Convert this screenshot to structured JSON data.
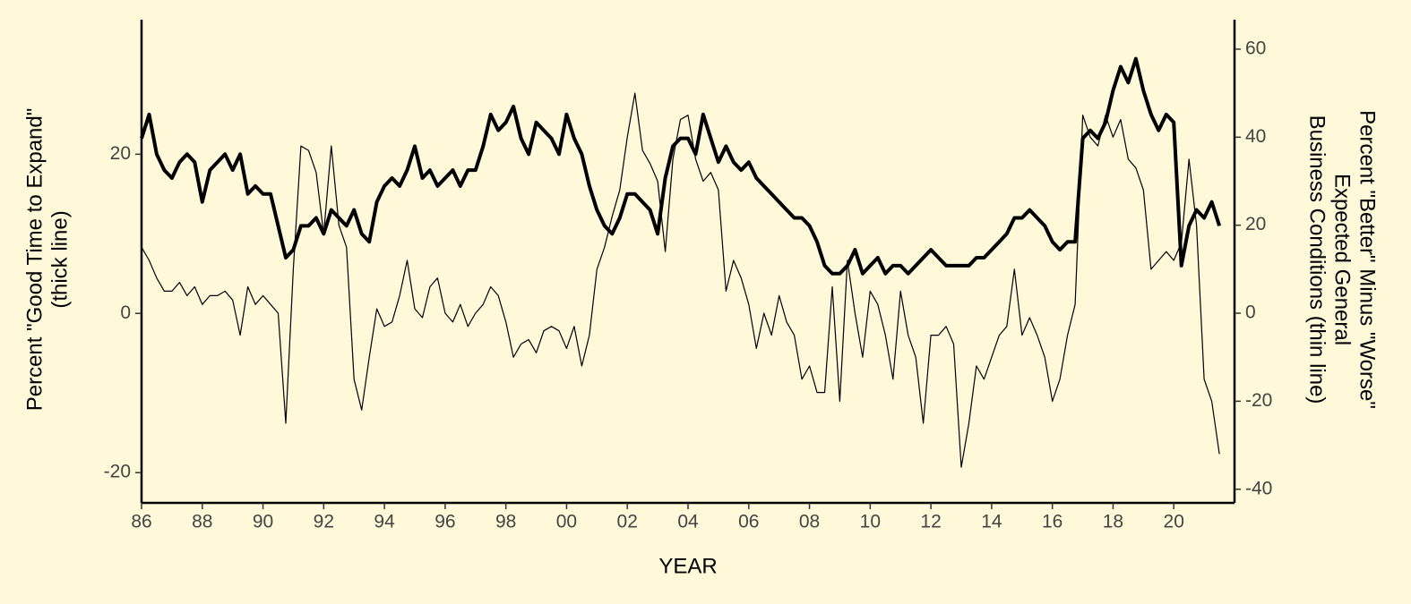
{
  "chart_data": {
    "type": "line",
    "xlabel": "YEAR",
    "ylabel": [
      "Percent \"Good Time to Expand\"",
      "(thick line)"
    ],
    "y2label": [
      "Percent \"Better\" Minus \"Worse\"",
      "Expected General",
      "Business Conditions (thin line)"
    ],
    "x": [
      1986,
      1986.25,
      1986.5,
      1986.75,
      1987,
      1987.25,
      1987.5,
      1987.75,
      1988,
      1988.25,
      1988.5,
      1988.75,
      1989,
      1989.25,
      1989.5,
      1989.75,
      1990,
      1990.25,
      1990.5,
      1990.75,
      1991,
      1991.25,
      1991.5,
      1991.75,
      1992,
      1992.25,
      1992.5,
      1992.75,
      1993,
      1993.25,
      1993.5,
      1993.75,
      1994,
      1994.25,
      1994.5,
      1994.75,
      1995,
      1995.25,
      1995.5,
      1995.75,
      1996,
      1996.25,
      1996.5,
      1996.75,
      1997,
      1997.25,
      1997.5,
      1997.75,
      1998,
      1998.25,
      1998.5,
      1998.75,
      1999,
      1999.25,
      1999.5,
      1999.75,
      2000,
      2000.25,
      2000.5,
      2000.75,
      2001,
      2001.25,
      2001.5,
      2001.75,
      2002,
      2002.25,
      2002.5,
      2002.75,
      2003,
      2003.25,
      2003.5,
      2003.75,
      2004,
      2004.25,
      2004.5,
      2004.75,
      2005,
      2005.25,
      2005.5,
      2005.75,
      2006,
      2006.25,
      2006.5,
      2006.75,
      2007,
      2007.25,
      2007.5,
      2007.75,
      2008,
      2008.25,
      2008.5,
      2008.75,
      2009,
      2009.25,
      2009.5,
      2009.75,
      2010,
      2010.25,
      2010.5,
      2010.75,
      2011,
      2011.25,
      2011.5,
      2011.75,
      2012,
      2012.25,
      2012.5,
      2012.75,
      2013,
      2013.25,
      2013.5,
      2013.75,
      2014,
      2014.25,
      2014.5,
      2014.75,
      2015,
      2015.25,
      2015.5,
      2015.75,
      2016,
      2016.25,
      2016.5,
      2016.75,
      2017,
      2017.25,
      2017.5,
      2017.75,
      2018,
      2018.25,
      2018.5,
      2018.75,
      2019,
      2019.25,
      2019.5,
      2019.75,
      2020,
      2020.25,
      2020.5,
      2020.75,
      2021,
      2021.25,
      2021.5
    ],
    "series": [
      {
        "name": "Good Time to Expand",
        "color": "#000000",
        "width": 4,
        "values": [
          22,
          25,
          20,
          18,
          17,
          19,
          20,
          19,
          14,
          18,
          19,
          20,
          18,
          20,
          15,
          16,
          15,
          15,
          11,
          7,
          8,
          11,
          11,
          12,
          10,
          13,
          12,
          11,
          13,
          10,
          9,
          14,
          16,
          17,
          16,
          18,
          21,
          17,
          18,
          16,
          17,
          18,
          16,
          18,
          18,
          21,
          25,
          23,
          24,
          26,
          22,
          20,
          24,
          23,
          22,
          20,
          25,
          22,
          20,
          16,
          13,
          11,
          10,
          12,
          15,
          15,
          14,
          13,
          10,
          17,
          21,
          22,
          22,
          20,
          25,
          22,
          19,
          21,
          19,
          18,
          19,
          17,
          16,
          15,
          14,
          13,
          12,
          12,
          11,
          9,
          6,
          5,
          5,
          6,
          8,
          5,
          6,
          7,
          5,
          6,
          6,
          5,
          6,
          7,
          8,
          7,
          6,
          6,
          6,
          6,
          7,
          7,
          8,
          9,
          10,
          12,
          12,
          13,
          12,
          11,
          9,
          8,
          9,
          9,
          22,
          23,
          22,
          24,
          28,
          31,
          29,
          32,
          28,
          25,
          23,
          25,
          24,
          6,
          11,
          13,
          12,
          14,
          11
        ]
      },
      {
        "name": "Better Minus Worse",
        "color": "#000000",
        "width": 1.2,
        "axis": "y2",
        "values": [
          15,
          12,
          8,
          5,
          5,
          7,
          4,
          6,
          2,
          4,
          4,
          5,
          3,
          -5,
          6,
          2,
          4,
          2,
          0,
          -25,
          10,
          38,
          37,
          32,
          18,
          38,
          20,
          15,
          -15,
          -22,
          -10,
          1,
          -3,
          -2,
          4,
          12,
          1,
          -1,
          6,
          8,
          0,
          -2,
          2,
          -3,
          0,
          2,
          6,
          4,
          -2,
          -10,
          -7,
          -6,
          -9,
          -4,
          -3,
          -4,
          -8,
          -3,
          -12,
          -5,
          10,
          15,
          22,
          28,
          40,
          50,
          37,
          34,
          30,
          14,
          35,
          44,
          45,
          35,
          30,
          32,
          28,
          5,
          12,
          8,
          2,
          -8,
          0,
          -5,
          4,
          -2,
          -5,
          -15,
          -12,
          -18,
          -18,
          6,
          -20,
          12,
          0,
          -10,
          5,
          2,
          -5,
          -15,
          5,
          -5,
          -10,
          -25,
          -5,
          -5,
          -3,
          -7,
          -35,
          -25,
          -12,
          -15,
          -10,
          -5,
          -3,
          10,
          -5,
          -1,
          -5,
          -10,
          -20,
          -15,
          -5,
          2,
          45,
          40,
          38,
          45,
          40,
          44,
          35,
          33,
          28,
          10,
          12,
          14,
          12,
          16,
          35,
          20,
          -15,
          -20,
          -32
        ]
      }
    ],
    "xlim": [
      1986,
      2022
    ],
    "xticks": [
      {
        "value": 1986,
        "label": "86"
      },
      {
        "value": 1988,
        "label": "88"
      },
      {
        "value": 1990,
        "label": "90"
      },
      {
        "value": 1992,
        "label": "92"
      },
      {
        "value": 1994,
        "label": "94"
      },
      {
        "value": 1996,
        "label": "96"
      },
      {
        "value": 1998,
        "label": "98"
      },
      {
        "value": 2000,
        "label": "00"
      },
      {
        "value": 2002,
        "label": "02"
      },
      {
        "value": 2004,
        "label": "04"
      },
      {
        "value": 2006,
        "label": "06"
      },
      {
        "value": 2008,
        "label": "08"
      },
      {
        "value": 2010,
        "label": "10"
      },
      {
        "value": 2012,
        "label": "12"
      },
      {
        "value": 2014,
        "label": "14"
      },
      {
        "value": 2016,
        "label": "16"
      },
      {
        "value": 2018,
        "label": "18"
      },
      {
        "value": 2020,
        "label": "20"
      }
    ],
    "ylim": [
      -23.8,
      36.9
    ],
    "yticks": [
      -20,
      0,
      20
    ],
    "y2lim": [
      -43.1,
      66.7
    ],
    "y2ticks": [
      -40,
      -20,
      0,
      20,
      40,
      60
    ],
    "grid": false
  }
}
